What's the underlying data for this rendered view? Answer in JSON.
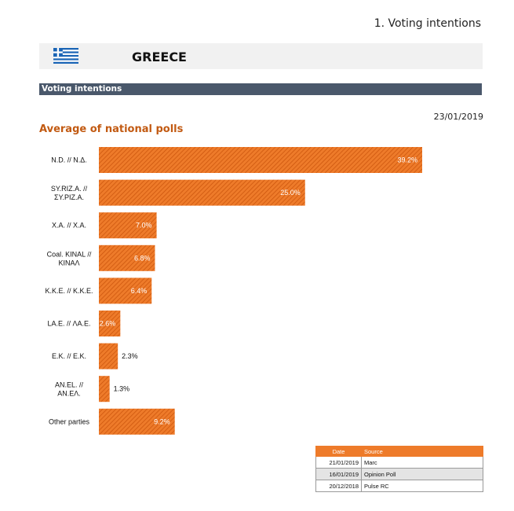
{
  "page": {
    "heading": "1. Voting intentions",
    "country": "GREECE",
    "section_title": "Voting intentions",
    "date": "23/01/2019",
    "flag_icon": "greece-flag-icon"
  },
  "colors": {
    "bar": "#ee7b2a",
    "bar_hatch": "#c9520a",
    "section_bar": "#4a586b",
    "title": "#c25a12",
    "table_header": "#ee7b2a"
  },
  "chart_data": {
    "type": "bar",
    "orientation": "horizontal",
    "title": "Average of national polls",
    "categories": [
      "N.D. // Ν.Δ.",
      "SY.RIZ.A. // ΣΥ.ΡΙΖ.Α.",
      "X.A. // Χ.Α.",
      "Coal. KINAL // ΚΙΝΑΛ",
      "K.K.E. // Κ.Κ.Ε.",
      "LA.E. // ΛΑ.Ε.",
      "E.K. // Ε.Κ.",
      "AN.EL. // ΑΝ.ΕΛ.",
      "Other parties"
    ],
    "category_lines": [
      [
        "N.D. // Ν.Δ."
      ],
      [
        "SY.RIZ.A. //",
        "ΣΥ.ΡΙΖ.Α."
      ],
      [
        "X.A. // Χ.Α."
      ],
      [
        "Coal. KINAL //",
        "ΚΙΝΑΛ"
      ],
      [
        "K.K.E. // Κ.Κ.Ε."
      ],
      [
        "LA.E. // ΛΑ.Ε."
      ],
      [
        "E.K. // Ε.Κ."
      ],
      [
        "AN.EL. //",
        "ΑΝ.ΕΛ."
      ],
      [
        "Other parties"
      ]
    ],
    "values": [
      39.2,
      25.0,
      7.0,
      6.8,
      6.4,
      2.6,
      2.3,
      1.3,
      9.2
    ],
    "value_labels": [
      "39.2%",
      "25.0%",
      "7.0%",
      "6.8%",
      "6.4%",
      "2.6%",
      "2.3%",
      "1.3%",
      "9.2%"
    ],
    "unit": "%",
    "xlim": [
      0,
      40
    ],
    "grid": false,
    "legend": "none"
  },
  "sources": {
    "headers": {
      "date": "Date",
      "source": "Source"
    },
    "rows": [
      {
        "date": "21/01/2019",
        "source": "Marc"
      },
      {
        "date": "16/01/2019",
        "source": "Opinion Poll"
      },
      {
        "date": "20/12/2018",
        "source": "Pulse RC"
      }
    ]
  }
}
